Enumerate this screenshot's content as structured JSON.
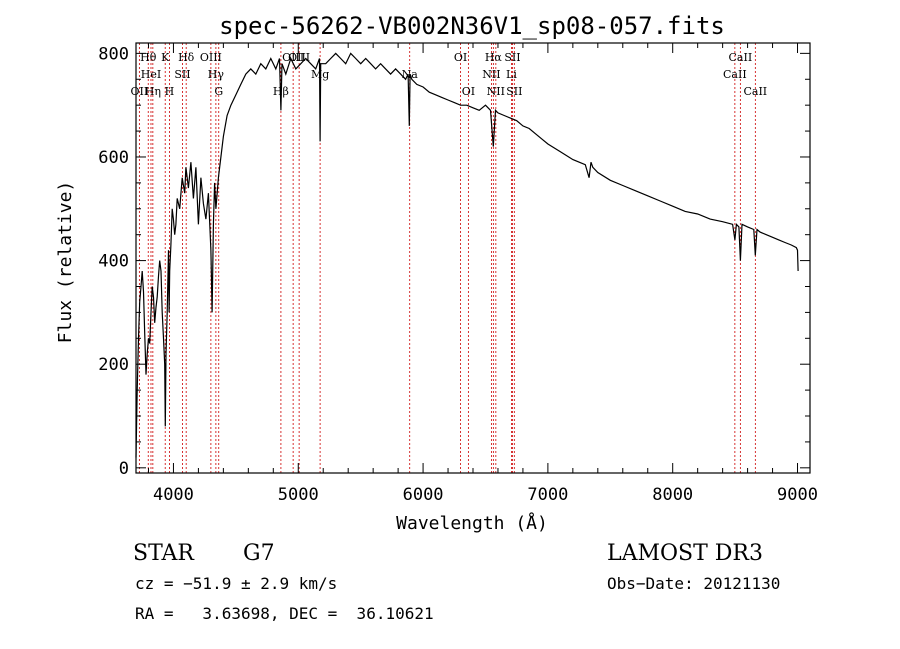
{
  "chart_data": {
    "type": "line",
    "title": "spec-56262-VB002N36V1_sp08-057.fits",
    "xlabel": "Wavelength (Å)",
    "ylabel": "Flux (relative)",
    "xlim": [
      3700,
      9100
    ],
    "ylim": [
      -10,
      820
    ],
    "x_ticks": [
      4000,
      5000,
      6000,
      7000,
      8000,
      9000
    ],
    "x_tick_labels": [
      "4000",
      "5000",
      "6000",
      "7000",
      "8000",
      "9000"
    ],
    "y_ticks": [
      0,
      200,
      400,
      600,
      800
    ],
    "y_tick_labels": [
      "0",
      "200",
      "400",
      "600",
      "800"
    ],
    "series": [
      {
        "name": "flux",
        "x": [
          3700,
          3710,
          3720,
          3730,
          3740,
          3750,
          3760,
          3770,
          3780,
          3790,
          3800,
          3810,
          3820,
          3830,
          3840,
          3850,
          3860,
          3870,
          3880,
          3890,
          3900,
          3910,
          3920,
          3930,
          3935,
          3940,
          3950,
          3960,
          3965,
          3970,
          3980,
          3990,
          4000,
          4010,
          4020,
          4030,
          4050,
          4070,
          4090,
          4100,
          4110,
          4120,
          4140,
          4160,
          4180,
          4200,
          4220,
          4240,
          4260,
          4280,
          4300,
          4310,
          4320,
          4330,
          4340,
          4360,
          4380,
          4400,
          4430,
          4460,
          4500,
          4540,
          4580,
          4620,
          4660,
          4700,
          4740,
          4780,
          4820,
          4850,
          4861,
          4870,
          4900,
          4940,
          4980,
          5020,
          5060,
          5100,
          5140,
          5170,
          5175,
          5180,
          5220,
          5260,
          5300,
          5340,
          5380,
          5420,
          5460,
          5500,
          5540,
          5580,
          5620,
          5660,
          5700,
          5740,
          5780,
          5820,
          5860,
          5880,
          5890,
          5896,
          5910,
          5950,
          6000,
          6050,
          6100,
          6150,
          6200,
          6250,
          6300,
          6350,
          6400,
          6450,
          6500,
          6540,
          6563,
          6580,
          6600,
          6650,
          6700,
          6750,
          6800,
          6850,
          6900,
          6950,
          7000,
          7100,
          7200,
          7300,
          7330,
          7345,
          7360,
          7400,
          7500,
          7600,
          7700,
          7800,
          7900,
          8000,
          8100,
          8200,
          8300,
          8400,
          8480,
          8498,
          8510,
          8530,
          8542,
          8555,
          8600,
          8650,
          8662,
          8675,
          8700,
          8750,
          8800,
          8850,
          8900,
          8950,
          8990,
          9000,
          9005
        ],
        "values": [
          20,
          150,
          250,
          320,
          350,
          380,
          340,
          260,
          180,
          220,
          250,
          240,
          300,
          350,
          330,
          280,
          310,
          330,
          370,
          400,
          380,
          300,
          250,
          200,
          80,
          220,
          300,
          420,
          300,
          380,
          430,
          500,
          480,
          450,
          470,
          520,
          500,
          560,
          530,
          580,
          560,
          540,
          590,
          520,
          580,
          470,
          560,
          510,
          480,
          530,
          420,
          300,
          470,
          550,
          500,
          560,
          600,
          640,
          680,
          700,
          720,
          740,
          760,
          770,
          760,
          780,
          770,
          790,
          770,
          790,
          690,
          780,
          760,
          790,
          770,
          780,
          790,
          780,
          770,
          790,
          630,
          780,
          780,
          790,
          800,
          790,
          780,
          800,
          790,
          780,
          790,
          780,
          770,
          780,
          770,
          760,
          770,
          760,
          750,
          760,
          660,
          760,
          750,
          740,
          735,
          725,
          720,
          715,
          710,
          705,
          700,
          700,
          695,
          690,
          700,
          690,
          620,
          690,
          685,
          680,
          675,
          670,
          660,
          655,
          645,
          635,
          625,
          610,
          595,
          585,
          560,
          590,
          580,
          570,
          555,
          545,
          535,
          525,
          515,
          505,
          495,
          490,
          480,
          475,
          470,
          440,
          470,
          465,
          400,
          470,
          465,
          460,
          410,
          460,
          455,
          450,
          445,
          440,
          435,
          430,
          425,
          420,
          380
        ]
      }
    ],
    "spectral_lines": [
      {
        "name": "OII",
        "x": 3727,
        "row": 3
      },
      {
        "name": "Hθ",
        "x": 3798,
        "row": 1
      },
      {
        "name": "HeI",
        "x": 3820,
        "row": 2
      },
      {
        "name": "Hη",
        "x": 3835,
        "row": 3
      },
      {
        "name": "K",
        "x": 3934,
        "row": 1
      },
      {
        "name": "H",
        "x": 3968,
        "row": 3
      },
      {
        "name": "SII",
        "x": 4072,
        "row": 2
      },
      {
        "name": "Hδ",
        "x": 4102,
        "row": 1
      },
      {
        "name": "OIII",
        "x": 4300,
        "row": 1
      },
      {
        "name": "Hγ",
        "x": 4340,
        "row": 2
      },
      {
        "name": "G",
        "x": 4363,
        "row": 3
      },
      {
        "name": "Hβ",
        "x": 4861,
        "row": 3
      },
      {
        "name": "OIII",
        "x": 4959,
        "row": 1
      },
      {
        "name": "OIII",
        "x": 5007,
        "row": 1
      },
      {
        "name": "Mg",
        "x": 5175,
        "row": 2
      },
      {
        "name": "Na",
        "x": 5893,
        "row": 2
      },
      {
        "name": "OI",
        "x": 6300,
        "row": 1
      },
      {
        "name": "OI",
        "x": 6363,
        "row": 3
      },
      {
        "name": "NII",
        "x": 6548,
        "row": 2
      },
      {
        "name": "Hα",
        "x": 6563,
        "row": 1
      },
      {
        "name": "NII",
        "x": 6583,
        "row": 3
      },
      {
        "name": "Li",
        "x": 6708,
        "row": 2
      },
      {
        "name": "SII",
        "x": 6716,
        "row": 1
      },
      {
        "name": "SII",
        "x": 6731,
        "row": 3
      },
      {
        "name": "CaII",
        "x": 8498,
        "row": 2
      },
      {
        "name": "CaII",
        "x": 8542,
        "row": 1
      },
      {
        "name": "CaII",
        "x": 8662,
        "row": 3
      }
    ],
    "line_color": "#cc0000"
  },
  "info": {
    "class_label": "STAR",
    "subclass_label": "G7",
    "survey_label": "LAMOST DR3",
    "cz_text": "cz = −51.9 ± 2.9 km/s",
    "obs_date_text": "Obs−Date: 20121130",
    "coords_text": "RA =   3.63698, DEC =  36.10621"
  }
}
